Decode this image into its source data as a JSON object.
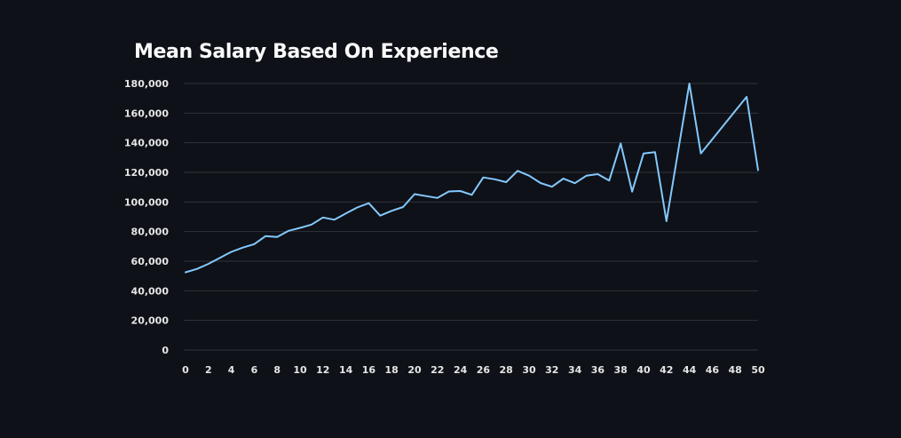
{
  "chart_data": {
    "type": "line",
    "title": "Mean Salary Based On Experience",
    "xlabel": "",
    "ylabel": "",
    "xlim": [
      0,
      50
    ],
    "ylim": [
      0,
      180000
    ],
    "x_ticks": [
      0,
      2,
      4,
      6,
      8,
      10,
      12,
      14,
      16,
      18,
      20,
      22,
      24,
      26,
      28,
      30,
      32,
      34,
      36,
      38,
      40,
      42,
      44,
      46,
      48,
      50
    ],
    "y_ticks": [
      0,
      20000,
      40000,
      60000,
      80000,
      100000,
      120000,
      140000,
      160000,
      180000
    ],
    "x_tick_labels": [
      "0",
      "2",
      "4",
      "6",
      "8",
      "10",
      "12",
      "14",
      "16",
      "18",
      "20",
      "22",
      "24",
      "26",
      "28",
      "30",
      "32",
      "34",
      "36",
      "38",
      "40",
      "42",
      "44",
      "46",
      "48",
      "50"
    ],
    "y_tick_labels": [
      "0",
      "20,000",
      "40,000",
      "60,000",
      "80,000",
      "100,000",
      "120,000",
      "140,000",
      "160,000",
      "180,000"
    ],
    "grid": true,
    "color": "#83c9ff",
    "series": [
      {
        "x": [
          0,
          1,
          2,
          3,
          4,
          5,
          6,
          7,
          8,
          9,
          10,
          11,
          12,
          13,
          14,
          15,
          16,
          17,
          18,
          19,
          20,
          21,
          22,
          23,
          24,
          25,
          26,
          27,
          28,
          29,
          30,
          31,
          32,
          33,
          34,
          35,
          36,
          37,
          38,
          39,
          40,
          41,
          42,
          44,
          45,
          49,
          50
        ],
        "y": [
          52500,
          54800,
          58200,
          62300,
          66300,
          69200,
          71500,
          77000,
          76300,
          80500,
          82500,
          84700,
          89500,
          88000,
          92200,
          96300,
          99200,
          90800,
          94000,
          96600,
          105300,
          104000,
          102700,
          107100,
          107400,
          104800,
          116600,
          115300,
          113400,
          121000,
          117800,
          112800,
          110300,
          115800,
          112700,
          117700,
          118800,
          114500,
          139500,
          107000,
          132800,
          133700,
          87000,
          180000,
          132800,
          171000,
          121500
        ]
      }
    ]
  }
}
